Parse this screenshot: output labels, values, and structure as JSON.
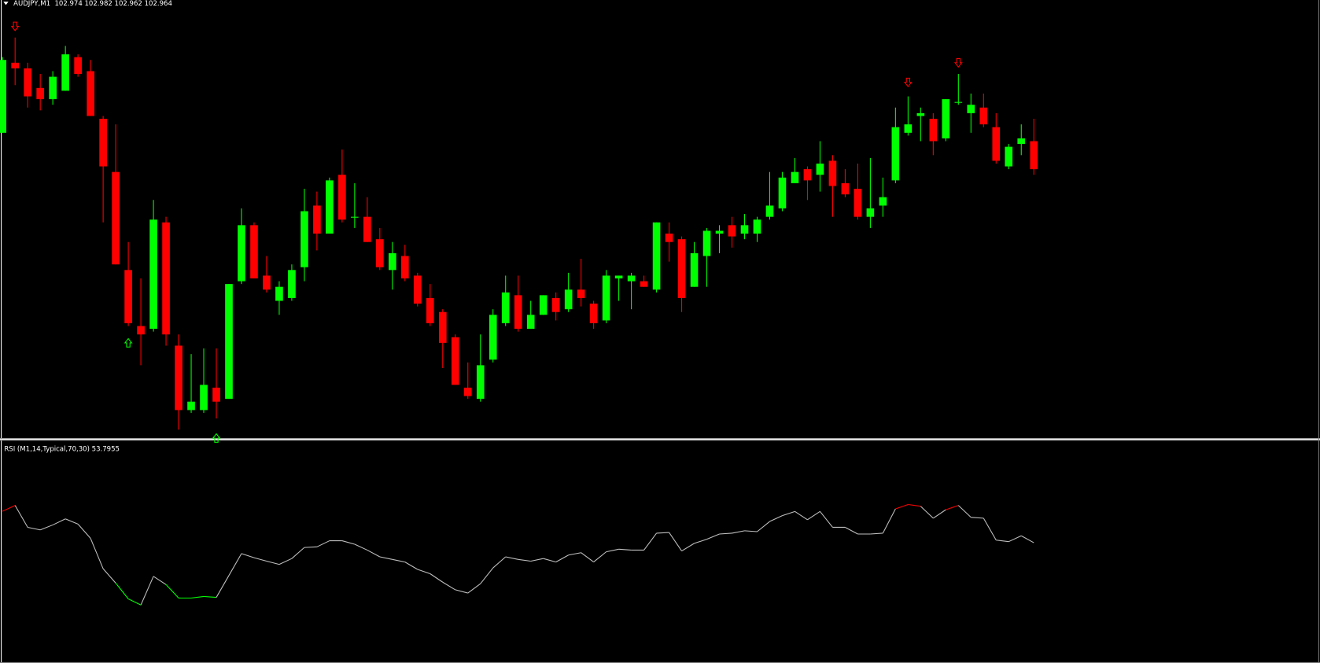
{
  "chart_data": [
    {
      "type": "candlestick",
      "title": "AUDJPY,M1  102.974 102.982 102.962 102.964",
      "up_color": "#00ff00",
      "down_color": "#ff0000",
      "ylim": [
        102.868,
        103.022
      ],
      "open": [
        102.977,
        103.002,
        103.0,
        102.993,
        102.989,
        102.992,
        103.004,
        102.999,
        102.982,
        102.963,
        102.928,
        102.908,
        102.907,
        102.945,
        102.901,
        102.878,
        102.878,
        102.886,
        102.882,
        102.924,
        102.944,
        102.926,
        102.917,
        102.918,
        102.929,
        102.951,
        102.941,
        102.962,
        102.947,
        102.947,
        102.939,
        102.928,
        102.933,
        102.926,
        102.918,
        102.913,
        102.904,
        102.886,
        102.882,
        102.896,
        102.909,
        102.919,
        102.907,
        102.912,
        102.918,
        102.914,
        102.921,
        102.916,
        102.91,
        102.925,
        102.924,
        102.924,
        102.921,
        102.941,
        102.939,
        102.922,
        102.933,
        102.941,
        102.944,
        102.941,
        102.941,
        102.947,
        102.95,
        102.959,
        102.964,
        102.962,
        102.967,
        102.959,
        102.957,
        102.947,
        102.951,
        102.96,
        102.977,
        102.983,
        102.982,
        102.975,
        102.988,
        102.984,
        102.986,
        102.979,
        102.965,
        102.973,
        102.974
      ],
      "high": [
        103.004,
        103.011,
        103.002,
        102.998,
        102.999,
        103.008,
        103.005,
        103.003,
        102.983,
        102.98,
        102.938,
        102.925,
        102.953,
        102.947,
        102.905,
        102.898,
        102.9,
        102.9,
        102.923,
        102.95,
        102.945,
        102.933,
        102.924,
        102.93,
        102.957,
        102.956,
        102.961,
        102.971,
        102.959,
        102.954,
        102.943,
        102.938,
        102.937,
        102.927,
        102.923,
        102.914,
        102.905,
        102.895,
        102.905,
        102.914,
        102.926,
        102.926,
        102.917,
        102.919,
        102.92,
        102.927,
        102.932,
        102.917,
        102.928,
        102.926,
        102.927,
        102.926,
        102.945,
        102.945,
        102.94,
        102.938,
        102.943,
        102.944,
        102.947,
        102.948,
        102.947,
        102.963,
        102.963,
        102.968,
        102.965,
        102.974,
        102.969,
        102.964,
        102.966,
        102.968,
        102.961,
        102.986,
        102.99,
        102.986,
        102.984,
        102.989,
        102.998,
        102.991,
        102.991,
        102.984,
        102.973,
        102.98,
        102.982
      ],
      "low": [
        102.977,
        102.994,
        102.986,
        102.985,
        102.987,
        102.992,
        102.997,
        102.983,
        102.945,
        102.93,
        102.908,
        102.894,
        102.906,
        102.901,
        102.871,
        102.877,
        102.877,
        102.875,
        102.882,
        102.923,
        102.925,
        102.92,
        102.912,
        102.917,
        102.924,
        102.935,
        102.941,
        102.945,
        102.943,
        102.938,
        102.928,
        102.921,
        102.924,
        102.915,
        102.908,
        102.893,
        102.887,
        102.882,
        102.881,
        102.895,
        102.908,
        102.906,
        102.907,
        102.912,
        102.91,
        102.913,
        102.915,
        102.907,
        102.909,
        102.917,
        102.914,
        102.922,
        102.92,
        102.931,
        102.913,
        102.922,
        102.922,
        102.934,
        102.936,
        102.939,
        102.938,
        102.946,
        102.949,
        102.959,
        102.953,
        102.956,
        102.947,
        102.954,
        102.946,
        102.943,
        102.947,
        102.959,
        102.976,
        102.974,
        102.969,
        102.974,
        102.987,
        102.977,
        102.979,
        102.966,
        102.964,
        102.969,
        102.962
      ],
      "close": [
        103.003,
        103.0,
        102.99,
        102.989,
        102.997,
        103.005,
        102.998,
        102.983,
        102.965,
        102.93,
        102.909,
        102.905,
        102.946,
        102.905,
        102.878,
        102.881,
        102.887,
        102.881,
        102.923,
        102.944,
        102.925,
        102.921,
        102.922,
        102.928,
        102.949,
        102.941,
        102.96,
        102.946,
        102.947,
        102.938,
        102.929,
        102.934,
        102.925,
        102.916,
        102.909,
        102.902,
        102.887,
        102.883,
        102.894,
        102.912,
        102.92,
        102.907,
        102.912,
        102.919,
        102.913,
        102.921,
        102.918,
        102.909,
        102.926,
        102.926,
        102.926,
        102.922,
        102.945,
        102.938,
        102.918,
        102.934,
        102.942,
        102.942,
        102.94,
        102.944,
        102.946,
        102.951,
        102.961,
        102.963,
        102.96,
        102.966,
        102.958,
        102.955,
        102.947,
        102.95,
        102.954,
        102.979,
        102.98,
        102.984,
        102.974,
        102.989,
        102.988,
        102.987,
        102.98,
        102.967,
        102.972,
        102.975,
        102.964
      ],
      "signal_up": [
        null,
        null,
        null,
        null,
        null,
        null,
        null,
        null,
        null,
        null,
        102.902,
        null,
        null,
        null,
        null,
        null,
        null,
        102.868,
        null,
        null,
        null,
        null,
        null,
        null,
        null,
        null,
        null,
        null,
        null,
        null,
        null,
        null,
        null,
        null,
        null,
        null,
        null,
        null,
        null,
        null,
        null,
        null,
        null,
        null,
        null,
        null,
        null,
        null,
        null,
        null,
        null,
        null,
        null,
        null,
        null,
        null,
        null,
        null,
        null,
        null,
        null,
        null,
        null,
        null,
        null,
        null,
        null,
        null,
        null,
        null,
        null,
        null,
        null,
        null,
        null,
        null,
        null,
        null,
        null,
        null,
        null,
        null,
        null
      ],
      "signal_down": [
        null,
        103.015,
        null,
        null,
        null,
        null,
        null,
        null,
        null,
        null,
        null,
        null,
        null,
        null,
        null,
        null,
        null,
        null,
        null,
        null,
        null,
        null,
        null,
        null,
        null,
        null,
        null,
        null,
        null,
        null,
        null,
        null,
        null,
        null,
        null,
        null,
        null,
        null,
        null,
        null,
        null,
        null,
        null,
        null,
        null,
        null,
        null,
        null,
        null,
        null,
        null,
        null,
        null,
        null,
        null,
        null,
        null,
        null,
        null,
        null,
        null,
        null,
        null,
        null,
        null,
        null,
        null,
        null,
        null,
        null,
        null,
        null,
        102.995,
        null,
        null,
        null,
        103.002,
        null,
        null,
        null,
        null,
        null,
        null
      ]
    },
    {
      "type": "line",
      "title": "RSI (M1,14,Typical,70,30) 53.7955",
      "color": "#c0c0c0",
      "upper_level": 70,
      "lower_level": 30,
      "upper_color": "#ff0000",
      "lower_color": "#00ff00",
      "ylim": [
        0,
        100
      ],
      "values": [
        68.3,
        71.0,
        60.9,
        59.7,
        62.0,
        64.8,
        62.4,
        55.8,
        41.8,
        35.2,
        27.9,
        25.1,
        38.3,
        34.5,
        28.3,
        28.3,
        29.0,
        28.6,
        38.7,
        48.8,
        46.9,
        45.3,
        43.8,
        46.5,
        51.6,
        51.9,
        54.7,
        54.7,
        53.1,
        50.4,
        47.3,
        46.1,
        44.9,
        41.5,
        39.5,
        35.6,
        32.1,
        30.6,
        34.9,
        42.2,
        47.3,
        46.1,
        45.3,
        46.5,
        44.9,
        48.1,
        49.2,
        44.9,
        49.6,
        50.8,
        50.4,
        50.4,
        58.2,
        58.5,
        50.0,
        53.5,
        55.4,
        57.8,
        58.2,
        59.3,
        58.9,
        63.6,
        66.3,
        68.2,
        64.4,
        68.2,
        60.9,
        60.9,
        57.8,
        57.8,
        58.2,
        69.4,
        71.4,
        70.6,
        65.1,
        69.0,
        71.0,
        65.5,
        65.1,
        55.0,
        54.3,
        57.0,
        53.7955
      ]
    }
  ]
}
